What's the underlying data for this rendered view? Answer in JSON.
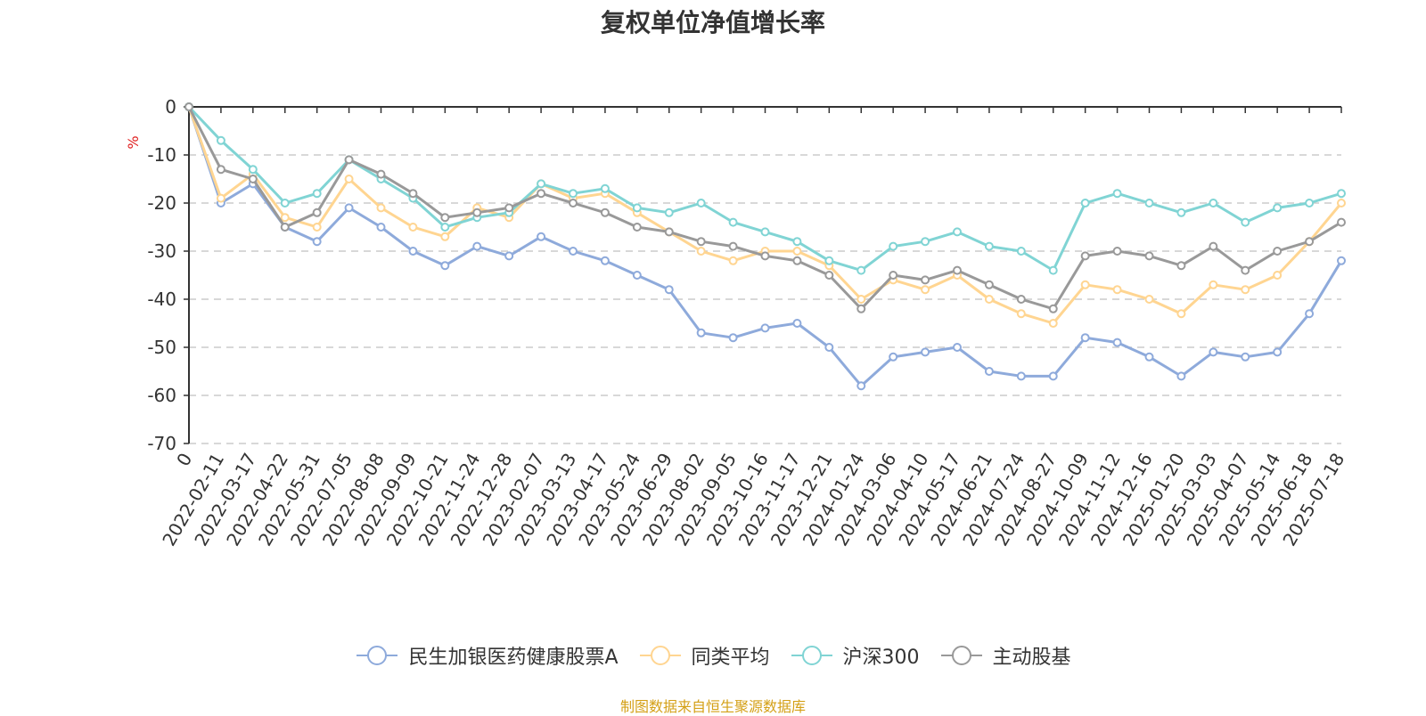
{
  "chart_data": {
    "type": "line",
    "title": "复权单位净值增长率",
    "ylabel": "%",
    "ylim": [
      -70,
      0
    ],
    "yticks": [
      0,
      -10,
      -20,
      -30,
      -40,
      -50,
      -60,
      -70
    ],
    "grid": true,
    "legend_position": "bottom",
    "x_start_label": "0",
    "x": [
      "2022-02-11",
      "2022-03-17",
      "2022-04-22",
      "2022-05-31",
      "2022-07-05",
      "2022-08-08",
      "2022-09-09",
      "2022-10-21",
      "2022-11-24",
      "2022-12-28",
      "2023-02-07",
      "2023-03-13",
      "2023-04-17",
      "2023-05-24",
      "2023-06-29",
      "2023-08-02",
      "2023-09-05",
      "2023-10-16",
      "2023-11-17",
      "2023-12-21",
      "2024-01-24",
      "2024-03-06",
      "2024-04-10",
      "2024-05-17",
      "2024-06-21",
      "2024-07-24",
      "2024-08-27",
      "2024-10-09",
      "2024-11-12",
      "2024-12-16",
      "2025-01-20",
      "2025-03-03",
      "2025-04-07",
      "2025-05-14",
      "2025-06-18",
      "2025-07-18"
    ],
    "series": [
      {
        "name": "民生加银医药健康股票A",
        "color": "#8eaadb",
        "values": [
          -20,
          -16,
          -25,
          -28,
          -21,
          -25,
          -30,
          -33,
          -29,
          -31,
          -27,
          -30,
          -32,
          -35,
          -38,
          -47,
          -48,
          -46,
          -45,
          -50,
          -58,
          -52,
          -51,
          -50,
          -55,
          -56,
          -56,
          -48,
          -49,
          -52,
          -56,
          -51,
          -52,
          -51,
          -43,
          -32
        ]
      },
      {
        "name": "同类平均",
        "color": "#ffd591",
        "values": [
          -19,
          -14,
          -23,
          -25,
          -15,
          -21,
          -25,
          -27,
          -21,
          -23,
          -16,
          -19,
          -18,
          -22,
          -26,
          -30,
          -32,
          -30,
          -30,
          -33,
          -40,
          -36,
          -38,
          -35,
          -40,
          -43,
          -45,
          -37,
          -38,
          -40,
          -43,
          -37,
          -38,
          -35,
          -28,
          -20
        ]
      },
      {
        "name": "沪深300",
        "color": "#80d4d4",
        "values": [
          -7,
          -13,
          -20,
          -18,
          -11,
          -15,
          -19,
          -25,
          -23,
          -22,
          -16,
          -18,
          -17,
          -21,
          -22,
          -20,
          -24,
          -26,
          -28,
          -32,
          -34,
          -29,
          -28,
          -26,
          -29,
          -30,
          -34,
          -20,
          -18,
          -20,
          -22,
          -20,
          -24,
          -21,
          -20,
          -18
        ]
      },
      {
        "name": "主动股基",
        "color": "#999999",
        "values": [
          -13,
          -15,
          -25,
          -22,
          -11,
          -14,
          -18,
          -23,
          -22,
          -21,
          -18,
          -20,
          -22,
          -25,
          -26,
          -28,
          -29,
          -31,
          -32,
          -35,
          -42,
          -35,
          -36,
          -34,
          -37,
          -40,
          -42,
          -31,
          -30,
          -31,
          -33,
          -29,
          -34,
          -30,
          -28,
          -24
        ]
      }
    ]
  },
  "source_note": "制图数据来自恒生聚源数据库"
}
